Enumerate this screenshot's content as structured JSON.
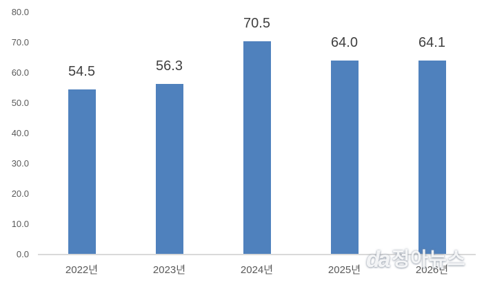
{
  "chart_data": {
    "type": "bar",
    "title": "",
    "xlabel": "",
    "ylabel": "",
    "categories": [
      "2022년",
      "2023년",
      "2024년",
      "2025년",
      "2026년"
    ],
    "values": [
      54.5,
      56.3,
      70.5,
      64.0,
      64.1
    ],
    "data_labels": [
      "54.5",
      "56.3",
      "70.5",
      "64.0",
      "64.1"
    ],
    "ylim": [
      0,
      80
    ],
    "ytick_values": [
      0,
      10,
      20,
      30,
      40,
      50,
      60,
      70,
      80
    ],
    "ytick_labels": [
      "0.0",
      "10.0",
      "20.0",
      "30.0",
      "40.0",
      "50.0",
      "60.0",
      "70.0",
      "80.0"
    ],
    "grid": false,
    "legend": false,
    "bar_color": "#4F81BD",
    "data_label_color": "#3F3F3F",
    "tick_label_color": "#595959",
    "axis_line_color": "#D9D9D9"
  },
  "watermark": {
    "logo_text": "da",
    "name_text": "정아뉴스"
  }
}
